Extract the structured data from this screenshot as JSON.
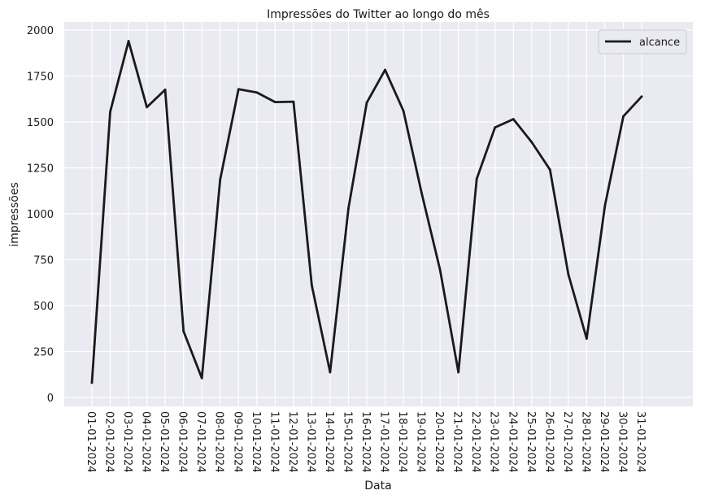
{
  "chart_data": {
    "type": "line",
    "title": "Impressões do Twitter ao longo do mês",
    "xlabel": "Data",
    "ylabel": "impressões",
    "ylim": [
      0,
      2000
    ],
    "yticks": [
      0,
      250,
      500,
      750,
      1000,
      1250,
      1500,
      1750,
      2000
    ],
    "grid": true,
    "legend_position": "top-right",
    "line_color": "#1a1a1a",
    "background_color": "#eaeaf2",
    "x": [
      "01-01-2024",
      "02-01-2024",
      "03-01-2024",
      "04-01-2024",
      "05-01-2024",
      "06-01-2024",
      "07-01-2024",
      "08-01-2024",
      "09-01-2024",
      "10-01-2024",
      "11-01-2024",
      "12-01-2024",
      "13-01-2024",
      "14-01-2024",
      "15-01-2024",
      "16-01-2024",
      "17-01-2024",
      "18-01-2024",
      "19-01-2024",
      "20-01-2024",
      "21-01-2024",
      "22-01-2024",
      "23-01-2024",
      "24-01-2024",
      "25-01-2024",
      "26-01-2024",
      "27-01-2024",
      "28-01-2024",
      "29-01-2024",
      "30-01-2024",
      "31-01-2024"
    ],
    "series": [
      {
        "name": "alcance",
        "values": [
          80,
          1555,
          1940,
          1580,
          1675,
          360,
          105,
          1185,
          1678,
          1660,
          1608,
          1610,
          610,
          137,
          1030,
          1605,
          1783,
          1560,
          1110,
          695,
          137,
          1190,
          1470,
          1515,
          1390,
          1240,
          670,
          320,
          1045,
          1530,
          1638
        ]
      }
    ]
  }
}
